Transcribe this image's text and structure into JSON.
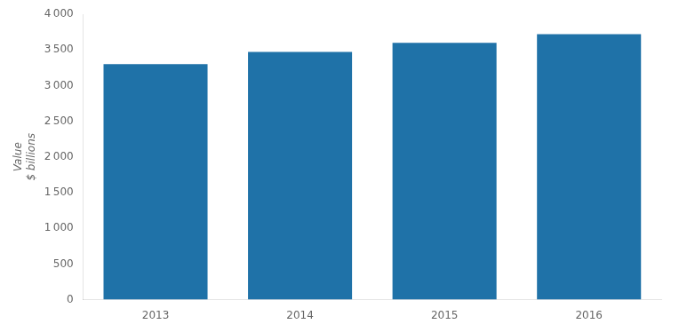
{
  "chart_data": {
    "type": "bar",
    "categories": [
      "2013",
      "2014",
      "2015",
      "2016"
    ],
    "values": [
      3300,
      3470,
      3600,
      3720
    ],
    "color": "#1f72a8",
    "ylabel": [
      "Value",
      "$ billions"
    ],
    "ylim": [
      0,
      4000
    ],
    "yticks": [
      0,
      500,
      {
        "value": 1000,
        "label": "1 000"
      },
      {
        "value": 1500,
        "label": "1 500"
      },
      {
        "value": 2000,
        "label": "2 000"
      },
      {
        "value": 2500,
        "label": "2 500"
      },
      {
        "value": 3000,
        "label": "3 000"
      },
      {
        "value": 3500,
        "label": "3 500"
      },
      {
        "value": 4000,
        "label": "4 000"
      }
    ],
    "grid": false
  }
}
